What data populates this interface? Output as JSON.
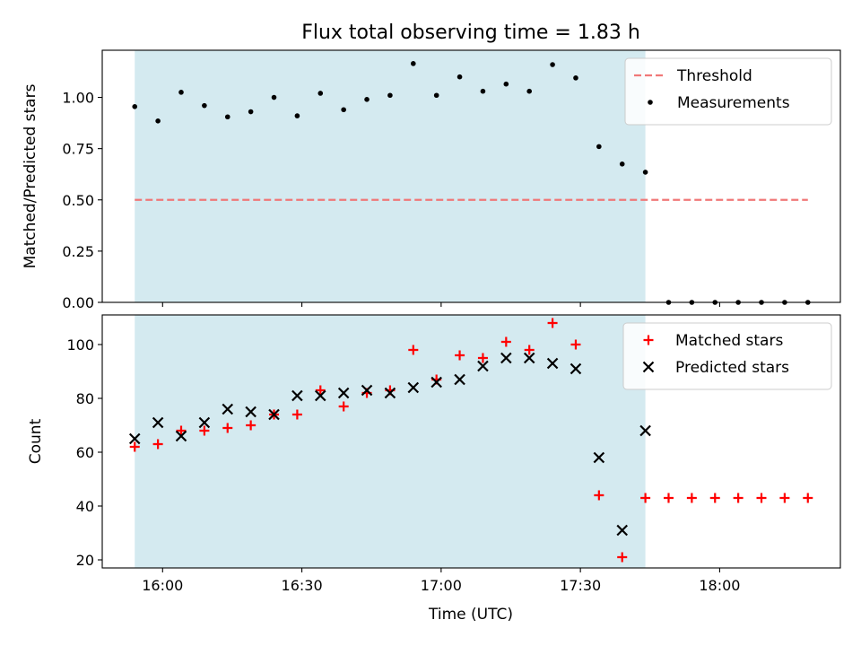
{
  "chart_data": {
    "type": "scatter",
    "title": "Flux total observing time = 1.83 h",
    "xlabel": "Time (UTC)",
    "x_tick_labels": [
      "16:00",
      "16:30",
      "17:00",
      "17:30",
      "18:00"
    ],
    "x_ticks_minutes": [
      960,
      990,
      1020,
      1050,
      1080
    ],
    "xlim_minutes": [
      947,
      1106
    ],
    "observing_window_minutes": [
      954,
      1064
    ],
    "observing_window_color": "#d4eaf0",
    "panels": [
      {
        "ylabel": "Matched/Predicted stars",
        "ylim": [
          0,
          1.23
        ],
        "yticks": [
          0.0,
          0.25,
          0.5,
          0.75,
          1.0
        ],
        "y_tick_labels": [
          "0.00",
          "0.25",
          "0.50",
          "0.75",
          "1.00"
        ],
        "legend_position": "upper-right",
        "threshold": {
          "name": "Threshold",
          "value": 0.5,
          "x_range_minutes": [
            954,
            1099
          ],
          "color": "#f07878",
          "style": "dashed"
        },
        "series": [
          {
            "name": "Measurements",
            "marker": "dot",
            "color": "#000000",
            "x_minutes": [
              954,
              959,
              964,
              969,
              974,
              979,
              984,
              989,
              994,
              999,
              1004,
              1009,
              1014,
              1019,
              1024,
              1029,
              1034,
              1039,
              1044,
              1049,
              1054,
              1059,
              1064,
              1069,
              1074,
              1079,
              1084,
              1089,
              1094,
              1099
            ],
            "values": [
              0.955,
              0.885,
              1.025,
              0.96,
              0.905,
              0.93,
              1.0,
              0.91,
              1.02,
              0.94,
              0.99,
              1.01,
              1.165,
              1.01,
              1.1,
              1.03,
              1.065,
              1.03,
              1.16,
              1.095,
              0.76,
              0.675,
              0.635,
              0.0,
              0.0,
              0.0,
              0.0,
              0.0,
              0.0,
              0.0
            ]
          }
        ]
      },
      {
        "ylabel": "Count",
        "ylim": [
          17,
          111
        ],
        "yticks": [
          20,
          40,
          60,
          80,
          100
        ],
        "y_tick_labels": [
          "20",
          "40",
          "60",
          "80",
          "100"
        ],
        "legend_position": "upper-right",
        "series": [
          {
            "name": "Matched stars",
            "marker": "plus",
            "color": "#ff0000",
            "x_minutes": [
              954,
              959,
              964,
              969,
              974,
              979,
              984,
              989,
              994,
              999,
              1004,
              1009,
              1014,
              1019,
              1024,
              1029,
              1034,
              1039,
              1044,
              1049,
              1054,
              1059,
              1064,
              1069,
              1074,
              1079,
              1084,
              1089,
              1094,
              1099
            ],
            "values": [
              62,
              63,
              68,
              68,
              69,
              70,
              74,
              74,
              83,
              77,
              82,
              83,
              98,
              87,
              96,
              95,
              101,
              98,
              108,
              100,
              44,
              21,
              43,
              43,
              43,
              43,
              43,
              43,
              43,
              43
            ]
          },
          {
            "name": "Predicted stars",
            "marker": "x",
            "color": "#000000",
            "x_minutes": [
              954,
              959,
              964,
              969,
              974,
              979,
              984,
              989,
              994,
              999,
              1004,
              1009,
              1014,
              1019,
              1024,
              1029,
              1034,
              1039,
              1044,
              1049,
              1054,
              1059,
              1064
            ],
            "values": [
              65,
              71,
              66,
              71,
              76,
              75,
              74,
              81,
              81,
              82,
              83,
              82,
              84,
              86,
              87,
              92,
              95,
              95,
              93,
              91,
              58,
              31,
              68
            ]
          }
        ]
      }
    ]
  }
}
